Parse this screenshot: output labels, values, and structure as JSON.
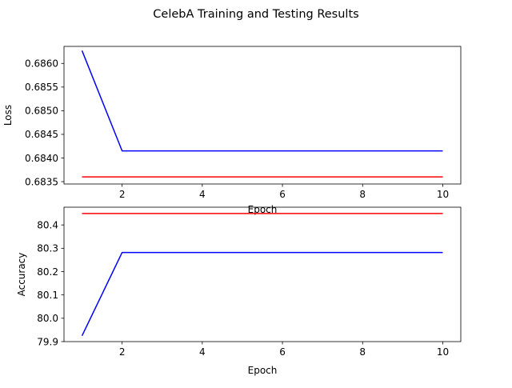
{
  "figure": {
    "title": "CelebA Training and Testing Results"
  },
  "chart_data": [
    {
      "type": "line",
      "title": "",
      "xlabel": "Epoch",
      "ylabel": "Loss",
      "x": [
        1,
        2,
        3,
        4,
        5,
        6,
        7,
        8,
        9,
        10
      ],
      "xlim": [
        0.55,
        10.45
      ],
      "ylim": [
        0.68345,
        0.68636
      ],
      "xticks": [
        2,
        4,
        6,
        8,
        10
      ],
      "yticks": [
        0.6835,
        0.684,
        0.6845,
        0.685,
        0.6855,
        0.686
      ],
      "ytick_labels": [
        "0.6835",
        "0.6840",
        "0.6845",
        "0.6850",
        "0.6855",
        "0.6860"
      ],
      "grid": false,
      "legend": "none",
      "series": [
        {
          "color": "#0000ff",
          "values": [
            0.68627,
            0.68415,
            0.68415,
            0.68415,
            0.68415,
            0.68415,
            0.68415,
            0.68415,
            0.68415,
            0.68415
          ]
        },
        {
          "color": "#ff0000",
          "values": [
            0.6836,
            0.6836,
            0.6836,
            0.6836,
            0.6836,
            0.6836,
            0.6836,
            0.6836,
            0.6836,
            0.6836
          ]
        }
      ]
    },
    {
      "type": "line",
      "title": "",
      "xlabel": "Epoch",
      "ylabel": "Accuracy",
      "x": [
        1,
        2,
        3,
        4,
        5,
        6,
        7,
        8,
        9,
        10
      ],
      "xlim": [
        0.55,
        10.45
      ],
      "ylim": [
        79.9,
        80.476
      ],
      "xticks": [
        2,
        4,
        6,
        8,
        10
      ],
      "yticks": [
        79.9,
        80.0,
        80.1,
        80.2,
        80.3,
        80.4
      ],
      "ytick_labels": [
        "79.9",
        "80.0",
        "80.1",
        "80.2",
        "80.3",
        "80.4"
      ],
      "grid": false,
      "legend": "none",
      "series": [
        {
          "color": "#0000ff",
          "values": [
            79.925,
            80.282,
            80.282,
            80.282,
            80.282,
            80.282,
            80.282,
            80.282,
            80.282,
            80.282
          ]
        },
        {
          "color": "#ff0000",
          "values": [
            80.449,
            80.449,
            80.449,
            80.449,
            80.449,
            80.449,
            80.449,
            80.449,
            80.449,
            80.449
          ]
        }
      ]
    }
  ]
}
